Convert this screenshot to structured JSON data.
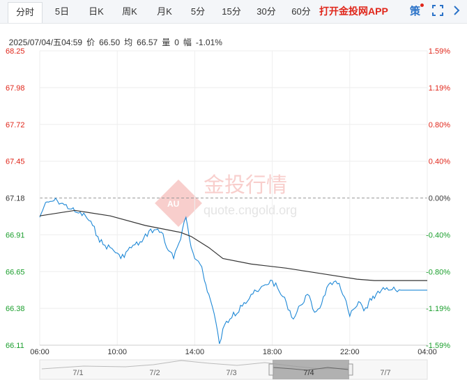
{
  "tabs": [
    {
      "label": "分时",
      "active": true
    },
    {
      "label": "5日"
    },
    {
      "label": "日K"
    },
    {
      "label": "周K"
    },
    {
      "label": "月K"
    },
    {
      "label": "5分"
    },
    {
      "label": "15分"
    },
    {
      "label": "30分"
    },
    {
      "label": "60分"
    }
  ],
  "toolbar": {
    "app_link": "打开金投网APP",
    "strategy_label": "策",
    "fullscreen_icon": "fullscreen-icon",
    "collapse_icon": "chevron-right-icon"
  },
  "info": {
    "datetime": "2025/07/04/五04:59",
    "price_label": "价",
    "price": "66.50",
    "avg_label": "均",
    "avg": "66.57",
    "volume_label": "量",
    "volume": "0",
    "change_label": "幅",
    "change": "-1.01%"
  },
  "watermark": {
    "brand_cn": "金投行情",
    "url": "quote.cngold.org"
  },
  "colors": {
    "up": "#e0261a",
    "down": "#1a9e2c",
    "price_line": "#1e88d6",
    "avg_line": "#333333",
    "grid": "#eeeeee",
    "prev_close_line": "#999999"
  },
  "chart_data": {
    "type": "line",
    "prev_close": 67.18,
    "ylim": [
      66.11,
      68.25
    ],
    "y_ticks_left": [
      "68.25",
      "67.98",
      "67.72",
      "67.45",
      "67.18",
      "66.91",
      "66.65",
      "66.38",
      "66.11"
    ],
    "y_ticks_right": [
      "1.59%",
      "1.19%",
      "0.80%",
      "0.40%",
      "0.00%",
      "-0.40%",
      "-0.80%",
      "-1.19%",
      "-1.59%"
    ],
    "x_ticks": [
      "06:00",
      "10:00",
      "14:00",
      "18:00",
      "22:00",
      "04:00"
    ],
    "x_range_hours": [
      0,
      22
    ],
    "series": [
      {
        "name": "价",
        "x": [
          0,
          0.25,
          0.5,
          0.8,
          1.0,
          1.4,
          1.8,
          2.0,
          2.2,
          2.6,
          3.0,
          3.3,
          3.6,
          4.0,
          4.4,
          4.6,
          5.0,
          5.4,
          5.8,
          6.2,
          6.6,
          7.0,
          7.2,
          7.4,
          7.6,
          7.8,
          8.0,
          8.3,
          8.6,
          8.9,
          9.2,
          9.35,
          9.6,
          9.9,
          10.2,
          10.5,
          10.8,
          11.0,
          11.2,
          11.4,
          11.6,
          11.8,
          12.0,
          12.4,
          12.8,
          13.2,
          13.6,
          14.0,
          14.4,
          14.8,
          15.2,
          15.6,
          16.0,
          16.3,
          16.6,
          17.0,
          17.3,
          17.6,
          17.9,
          18.2,
          18.4,
          18.6,
          18.75,
          19.0,
          19.4,
          19.8,
          20.2,
          20.5
        ],
        "values": [
          67.04,
          67.12,
          67.15,
          67.16,
          67.16,
          67.13,
          67.1,
          67.08,
          67.07,
          67.05,
          66.98,
          66.9,
          66.84,
          66.82,
          66.78,
          66.74,
          66.8,
          66.84,
          66.86,
          66.94,
          66.95,
          66.92,
          66.82,
          66.79,
          66.74,
          66.82,
          66.88,
          67.04,
          66.82,
          66.73,
          66.68,
          66.58,
          66.48,
          66.34,
          66.12,
          66.26,
          66.3,
          66.35,
          66.34,
          66.4,
          66.42,
          66.43,
          66.48,
          66.5,
          66.55,
          66.58,
          66.5,
          66.42,
          66.3,
          66.4,
          66.48,
          66.35,
          66.41,
          66.53,
          66.55,
          66.56,
          66.46,
          66.32,
          66.38,
          66.42,
          66.36,
          66.38,
          66.45,
          66.45,
          66.51,
          66.51,
          66.51,
          66.51
        ]
      },
      {
        "name": "均",
        "x": [
          0,
          2,
          4,
          6,
          8,
          8.6,
          9.6,
          10.4,
          12,
          14,
          16,
          18,
          19,
          20,
          22
        ],
        "values": [
          67.05,
          67.09,
          67.05,
          66.98,
          66.93,
          66.9,
          66.82,
          66.74,
          66.7,
          66.67,
          66.63,
          66.59,
          66.58,
          66.58,
          66.58
        ]
      }
    ]
  },
  "navigator": {
    "labels": [
      "7/1",
      "7/2",
      "7/3",
      "7/4",
      "7/7"
    ],
    "selected": "7/4"
  }
}
